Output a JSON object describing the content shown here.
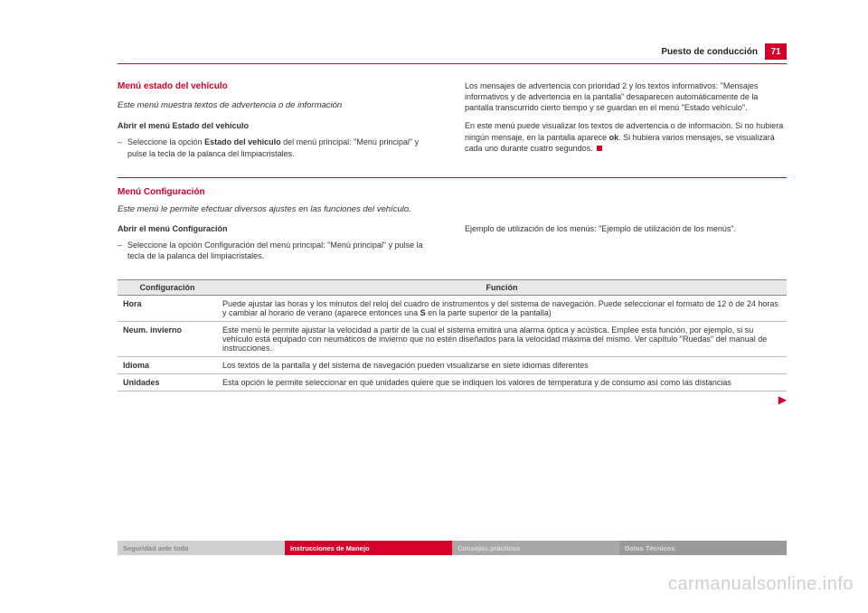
{
  "header": {
    "chapter": "Puesto de conducción",
    "page_number": "71"
  },
  "section1": {
    "heading": "Menú estado del vehículo",
    "lead": "Este menú muestra textos de advertencia o de información",
    "sub_heading": "Abrir el menú Estado del vehículo",
    "bullet_prefix": "–",
    "bullet_pre": "Seleccione la opción ",
    "bullet_bold": "Estado del vehículo",
    "bullet_post": " del menú principal: \"Menú principal\" y pulse la tecla de la palanca del limpiacristales.",
    "right_para1": "Los mensajes de advertencia con prioridad 2 y los textos informativos: \"Mensajes informativos y de advertencia en la pantalla\" desaparecen automáticamente de la pantalla transcurrido cierto tiempo y se guardan en el menú \"Estado vehículo\".",
    "right_para2_pre": "En este menú puede visualizar los textos de advertencia o de información. Si no hubiera ningún mensaje, en la pantalla aparece ",
    "right_para2_bold": "ok",
    "right_para2_post": ". Si hubiera varios mensajes, se visualizará cada uno durante cuatro segundos."
  },
  "section2": {
    "heading": "Menú Configuración",
    "lead": "Este menú le permite efectuar diversos ajustes en las funciones del vehículo.",
    "left_sub": "Abrir el menú Configuración",
    "left_bullet_prefix": "–",
    "left_bullet": "Seleccione la opción Configuración del menú principal: \"Menú principal\" y pulse la tecla de la palanca del limpiacristales.",
    "right_para": "Ejemplo de utilización de los menús: \"Ejemplo de utilización de los menús\"."
  },
  "table": {
    "header_config": "Configuración",
    "header_function": "Función",
    "rows": [
      {
        "key": "Hora",
        "value_pre": "Puede ajustar las horas y los minutos del reloj del cuadro de instrumentos y del sistema de navegación. Puede seleccionar el formato de 12 ó de 24 horas y cambiar al horario de verano (aparece entonces una ",
        "value_bold": "S",
        "value_post": " en la parte superior de la pantalla)"
      },
      {
        "key": "Neum. invierno",
        "value_pre": "Este menú le permite ajustar la velocidad a partir de la cual el sistema emitirá una alarma óptica y acústica. Emplee esta función, por ejemplo, si su vehículo está equipado con neumáticos de invierno que no estén diseñados para la velocidad máxima del mismo. Ver capítulo \"Ruedas\" del manual de instrucciones.",
        "value_bold": "",
        "value_post": ""
      },
      {
        "key": "Idioma",
        "value_pre": "Los textos de la pantalla y del sistema de navegación pueden visualizarse en siete idiomas diferentes",
        "value_bold": "",
        "value_post": ""
      },
      {
        "key": "Unidades",
        "value_pre": "Esta opción le permite seleccionar en qué unidades quiere que se indiquen los valores de temperatura y de consumo así como las distancias",
        "value_bold": "",
        "value_post": ""
      }
    ]
  },
  "footer": {
    "tabs": [
      "Seguridad ante todo",
      "Instrucciones de Manejo",
      "Consejos prácticos",
      "Datos Técnicos"
    ]
  },
  "watermark": "carmanualsonline.info",
  "colors": {
    "brand_red": "#d4002a",
    "grey_tab": "#cfcfcf"
  }
}
